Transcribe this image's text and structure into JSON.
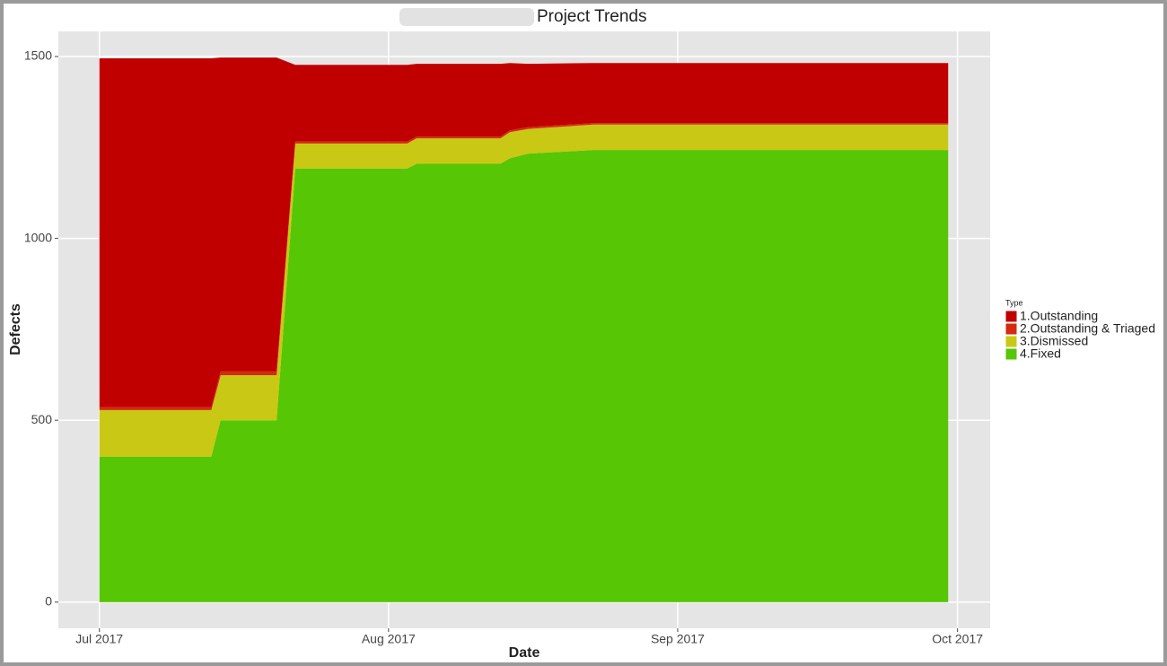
{
  "chart_data": {
    "type": "stacked-area",
    "title": "Project Trends",
    "x_label": "Date",
    "y_label": "Defects",
    "legend_title": "Type",
    "legend_position": "right",
    "x": [
      0,
      12,
      13,
      19,
      21,
      33,
      34,
      43,
      44,
      46,
      53,
      91
    ],
    "series": [
      {
        "name": "4.Fixed",
        "color": "#56c605",
        "values": [
          400,
          400,
          500,
          500,
          1192,
          1192,
          1205,
          1205,
          1220,
          1233,
          1243,
          1243
        ]
      },
      {
        "name": "3.Dismissed",
        "color": "#c8c815",
        "values": [
          128,
          128,
          124,
          124,
          69,
          69,
          70,
          70,
          72,
          68,
          70,
          70
        ]
      },
      {
        "name": "2.Outstanding & Triaged",
        "color": "#d42a10",
        "values": [
          8,
          8,
          10,
          10,
          5,
          5,
          5,
          5,
          5,
          5,
          4,
          4
        ]
      },
      {
        "name": "1.Outstanding",
        "color": "#c00000",
        "values": [
          959,
          959,
          863,
          863,
          211,
          211,
          200,
          200,
          185,
          174,
          165,
          165
        ]
      }
    ],
    "xlim": [
      -4.4,
      95.5
    ],
    "xticks": [
      {
        "value": 0,
        "label": "Jul 2017"
      },
      {
        "value": 31,
        "label": "Aug 2017"
      },
      {
        "value": 62,
        "label": "Sep 2017"
      },
      {
        "value": 92,
        "label": "Oct 2017"
      }
    ],
    "ylim": [
      -72,
      1569
    ],
    "yticks": [
      0,
      500,
      1000,
      1500
    ],
    "grid": true
  }
}
